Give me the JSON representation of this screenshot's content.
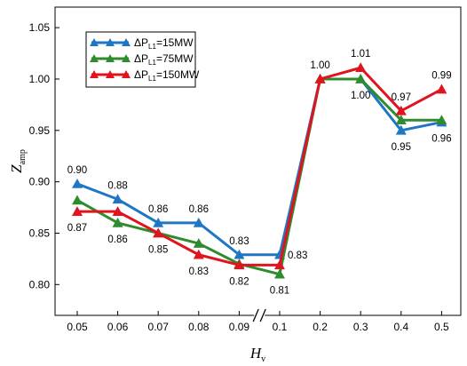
{
  "chart_data": {
    "type": "line",
    "title": "",
    "xlabel": {
      "main": "H",
      "sub": "v"
    },
    "ylabel": {
      "main": "Z",
      "sub": "amp"
    },
    "categories": [
      "0.05",
      "0.06",
      "0.07",
      "0.08",
      "0.09",
      "0.1",
      "0.2",
      "0.3",
      "0.4",
      "0.5"
    ],
    "axis_break": {
      "between": [
        "0.09",
        "0.1"
      ],
      "symbol": "//"
    },
    "ylim": [
      0.77,
      1.07
    ],
    "yticks": [
      0.8,
      0.85,
      0.9,
      0.95,
      1.0,
      1.05
    ],
    "ytick_labels": [
      "0.80",
      "0.85",
      "0.90",
      "0.95",
      "1.00",
      "1.05"
    ],
    "grid": false,
    "legend_position": "top-left",
    "series": [
      {
        "name_prefix": "ΔP",
        "name_sub": "L1",
        "name_suffix": "=15MW",
        "color": "#1f77c4",
        "marker": "triangle",
        "values": [
          0.898,
          0.883,
          0.86,
          0.86,
          0.829,
          0.829,
          1.0,
          1.0,
          0.95,
          0.958
        ]
      },
      {
        "name_prefix": "ΔP",
        "name_sub": "L1",
        "name_suffix": "=75MW",
        "color": "#2e8b2e",
        "marker": "triangle",
        "values": [
          0.882,
          0.86,
          0.85,
          0.84,
          0.82,
          0.81,
          1.0,
          1.0,
          0.96,
          0.96
        ]
      },
      {
        "name_prefix": "ΔP",
        "name_sub": "L1",
        "name_suffix": "=150MW",
        "color": "#e0141e",
        "marker": "triangle",
        "values": [
          0.871,
          0.871,
          0.85,
          0.829,
          0.819,
          0.819,
          1.0,
          1.011,
          0.969,
          0.99
        ]
      }
    ],
    "annotations": [
      {
        "text": "0.90",
        "x": "0.05",
        "y": 0.898,
        "pos": "above"
      },
      {
        "text": "0.87",
        "x": "0.05",
        "y": 0.871,
        "pos": "below"
      },
      {
        "text": "0.88",
        "x": "0.06",
        "y": 0.883,
        "pos": "above"
      },
      {
        "text": "0.86",
        "x": "0.06",
        "y": 0.86,
        "pos": "below"
      },
      {
        "text": "0.86",
        "x": "0.07",
        "y": 0.86,
        "pos": "above"
      },
      {
        "text": "0.85",
        "x": "0.07",
        "y": 0.85,
        "pos": "below"
      },
      {
        "text": "0.86",
        "x": "0.08",
        "y": 0.86,
        "pos": "above"
      },
      {
        "text": "0.83",
        "x": "0.08",
        "y": 0.829,
        "pos": "below"
      },
      {
        "text": "0.83",
        "x": "0.09",
        "y": 0.829,
        "pos": "above"
      },
      {
        "text": "0.82",
        "x": "0.09",
        "y": 0.819,
        "pos": "below"
      },
      {
        "text": "0.83",
        "x": "0.1",
        "y": 0.829,
        "pos": "right"
      },
      {
        "text": "0.81",
        "x": "0.1",
        "y": 0.81,
        "pos": "below"
      },
      {
        "text": "1.00",
        "x": "0.2",
        "y": 1.0,
        "pos": "above"
      },
      {
        "text": "1.00",
        "x": "0.3",
        "y": 1.0,
        "pos": "below"
      },
      {
        "text": "1.01",
        "x": "0.3",
        "y": 1.011,
        "pos": "above"
      },
      {
        "text": "0.97",
        "x": "0.4",
        "y": 0.969,
        "pos": "above"
      },
      {
        "text": "0.95",
        "x": "0.4",
        "y": 0.95,
        "pos": "below"
      },
      {
        "text": "0.99",
        "x": "0.5",
        "y": 0.99,
        "pos": "above"
      },
      {
        "text": "0.96",
        "x": "0.5",
        "y": 0.958,
        "pos": "below"
      }
    ]
  }
}
